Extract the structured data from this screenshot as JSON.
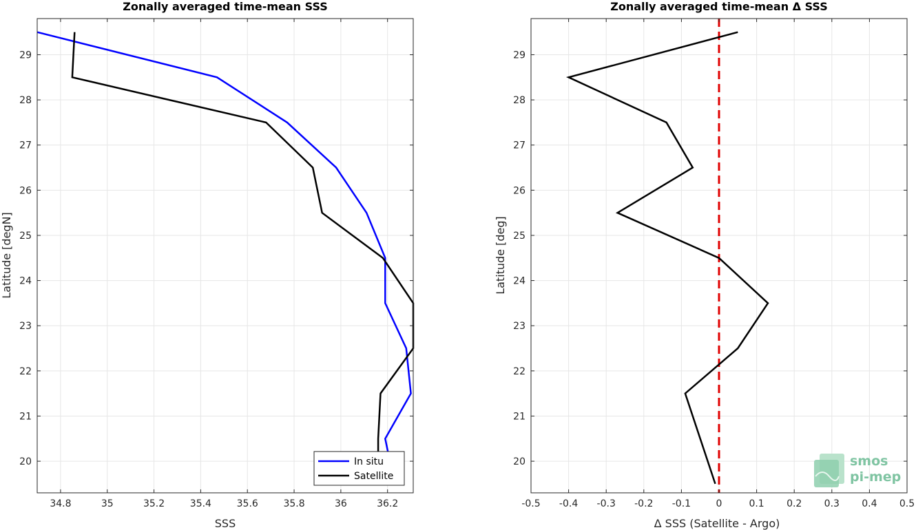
{
  "chart_data": [
    {
      "type": "line",
      "title": "Zonally averaged time-mean SSS",
      "xlabel": "SSS",
      "ylabel": "Latitude [degN]",
      "xlim": [
        34.7,
        36.31
      ],
      "ylim": [
        19.3,
        29.8
      ],
      "xticks": [
        34.8,
        35,
        35.2,
        35.4,
        35.6,
        35.8,
        36,
        36.2
      ],
      "xtick_labels": [
        "34.8",
        "35",
        "35.2",
        "35.4",
        "35.6",
        "35.8",
        "36",
        "36.2"
      ],
      "yticks": [
        20,
        21,
        22,
        23,
        24,
        25,
        26,
        27,
        28,
        29
      ],
      "ytick_labels": [
        "20",
        "21",
        "22",
        "23",
        "24",
        "25",
        "26",
        "27",
        "28",
        "29"
      ],
      "grid": true,
      "legend": "bottom-right",
      "series": [
        {
          "name": "In situ",
          "color": "#0000ff",
          "points": [
            [
              36.21,
              20.0
            ],
            [
              36.19,
              20.5
            ],
            [
              36.3,
              21.5
            ],
            [
              36.28,
              22.5
            ],
            [
              36.19,
              23.5
            ],
            [
              36.19,
              24.5
            ],
            [
              36.11,
              25.5
            ],
            [
              35.98,
              26.5
            ],
            [
              35.77,
              27.5
            ],
            [
              35.47,
              28.5
            ],
            [
              34.7,
              29.5
            ]
          ]
        },
        {
          "name": "Satellite",
          "color": "#000000",
          "points": [
            [
              36.16,
              20.0
            ],
            [
              36.16,
              20.5
            ],
            [
              36.17,
              21.5
            ],
            [
              36.31,
              22.5
            ],
            [
              36.31,
              23.5
            ],
            [
              36.18,
              24.5
            ],
            [
              35.92,
              25.5
            ],
            [
              35.88,
              26.5
            ],
            [
              35.68,
              27.5
            ],
            [
              34.85,
              28.5
            ],
            [
              34.86,
              29.5
            ]
          ]
        }
      ]
    },
    {
      "type": "line",
      "title": "Zonally averaged time-mean Δ SSS",
      "xlabel": "Δ SSS (Satellite - Argo)",
      "ylabel": "Latitude [deg]",
      "xlim": [
        -0.5,
        0.5
      ],
      "ylim": [
        19.3,
        29.8
      ],
      "xticks": [
        -0.5,
        -0.4,
        -0.3,
        -0.2,
        -0.1,
        0,
        0.1,
        0.2,
        0.3,
        0.4,
        0.5
      ],
      "xtick_labels": [
        "-0.5",
        "-0.4",
        "-0.3",
        "-0.2",
        "-0.1",
        "0",
        "0.1",
        "0.2",
        "0.3",
        "0.4",
        "0.5"
      ],
      "yticks": [
        20,
        21,
        22,
        23,
        24,
        25,
        26,
        27,
        28,
        29
      ],
      "ytick_labels": [
        "20",
        "21",
        "22",
        "23",
        "24",
        "25",
        "26",
        "27",
        "28",
        "29"
      ],
      "grid": true,
      "reference_line": {
        "x": 0,
        "color": "#e00000",
        "style": "dashed"
      },
      "series": [
        {
          "color": "#000000",
          "points": [
            [
              -0.01,
              19.5
            ],
            [
              -0.05,
              20.5
            ],
            [
              -0.09,
              21.5
            ],
            [
              0.05,
              22.5
            ],
            [
              0.13,
              23.5
            ],
            [
              0.0,
              24.5
            ],
            [
              -0.27,
              25.5
            ],
            [
              -0.07,
              26.5
            ],
            [
              -0.14,
              27.5
            ],
            [
              -0.4,
              28.5
            ],
            [
              0.05,
              29.5
            ]
          ]
        }
      ]
    }
  ],
  "logo": {
    "line1": "smos",
    "line2": "pi-mep"
  }
}
